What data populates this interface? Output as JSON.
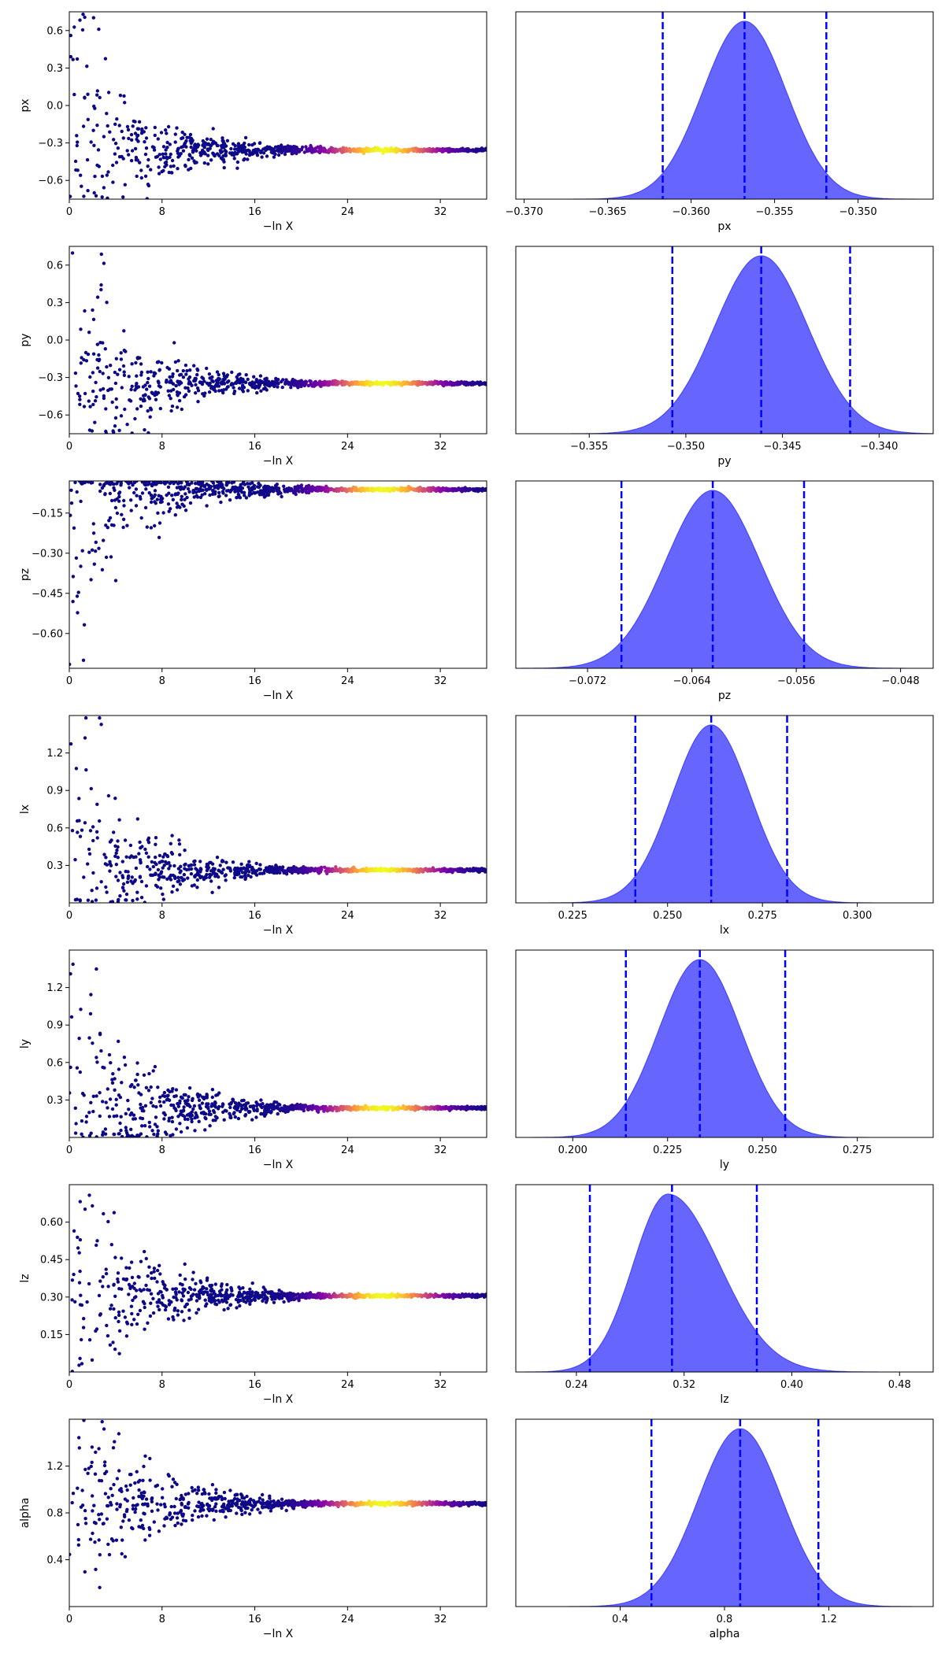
{
  "chart_data": [
    {
      "type": "scatter",
      "panel": "trace",
      "param": "px",
      "xlabel": "−ln X",
      "ylabel": "px",
      "xlim": [
        0,
        36
      ],
      "ylim": [
        -0.75,
        0.75
      ],
      "xticks": [
        0,
        8,
        16,
        24,
        32
      ],
      "yticks": [
        "0.6",
        "0.3",
        "0.0",
        "−0.3",
        "−0.6"
      ],
      "yvals": [
        0.6,
        0.3,
        0.0,
        -0.3,
        -0.6
      ],
      "converge_value": -0.357,
      "early_spread": [
        -0.75,
        0.75
      ],
      "colormap": "plasma",
      "peak_x": 27
    },
    {
      "type": "area",
      "panel": "posterior",
      "xlabel": "px",
      "xlim": [
        -0.3705,
        -0.3455
      ],
      "xticks": [
        "−0.370",
        "−0.365",
        "−0.360",
        "−0.355",
        "−0.350"
      ],
      "xvals": [
        -0.37,
        -0.365,
        -0.36,
        -0.355,
        -0.35
      ],
      "mean": -0.3568,
      "std": 0.0025,
      "skew": 0.0,
      "quantiles": [
        -0.3617,
        -0.3568,
        -0.3519
      ]
    },
    {
      "type": "scatter",
      "panel": "trace",
      "param": "py",
      "xlabel": "−ln X",
      "ylabel": "py",
      "xlim": [
        0,
        36
      ],
      "ylim": [
        -0.75,
        0.75
      ],
      "xticks": [
        0,
        8,
        16,
        24,
        32
      ],
      "yticks": [
        "0.6",
        "0.3",
        "0.0",
        "−0.3",
        "−0.6"
      ],
      "yvals": [
        0.6,
        0.3,
        0.0,
        -0.3,
        -0.6
      ],
      "converge_value": -0.346,
      "early_spread": [
        -0.75,
        0.75
      ],
      "colormap": "plasma",
      "peak_x": 27
    },
    {
      "type": "area",
      "panel": "posterior",
      "xlabel": "py",
      "xlim": [
        -0.3588,
        -0.3372
      ],
      "xticks": [
        "−0.355",
        "−0.350",
        "−0.345",
        "−0.340"
      ],
      "xvals": [
        -0.355,
        -0.35,
        -0.345,
        -0.34
      ],
      "mean": -0.3461,
      "std": 0.0024,
      "skew": 0.0,
      "quantiles": [
        -0.3507,
        -0.3461,
        -0.3415
      ]
    },
    {
      "type": "scatter",
      "panel": "trace",
      "param": "pz",
      "xlabel": "−ln X",
      "ylabel": "pz",
      "xlim": [
        0,
        36
      ],
      "ylim": [
        -0.73,
        -0.03
      ],
      "xticks": [
        0,
        8,
        16,
        24,
        32
      ],
      "yticks": [
        "−0.15",
        "−0.30",
        "−0.45",
        "−0.60"
      ],
      "yvals": [
        -0.15,
        -0.3,
        -0.45,
        -0.6
      ],
      "converge_value": -0.062,
      "early_spread": [
        -0.73,
        -0.03
      ],
      "colormap": "plasma",
      "peak_x": 27
    },
    {
      "type": "area",
      "panel": "posterior",
      "xlabel": "pz",
      "xlim": [
        -0.0775,
        -0.0455
      ],
      "xticks": [
        "−0.072",
        "−0.064",
        "−0.056",
        "−0.048"
      ],
      "xvals": [
        -0.072,
        -0.064,
        -0.056,
        -0.048
      ],
      "mean": -0.0624,
      "std": 0.0036,
      "skew": 0.0,
      "quantiles": [
        -0.0694,
        -0.0624,
        -0.0554
      ]
    },
    {
      "type": "scatter",
      "panel": "trace",
      "param": "lx",
      "xlabel": "−ln X",
      "ylabel": "lx",
      "xlim": [
        0,
        36
      ],
      "ylim": [
        0.0,
        1.5
      ],
      "xticks": [
        0,
        8,
        16,
        24,
        32
      ],
      "yticks": [
        "1.2",
        "0.9",
        "0.6",
        "0.3"
      ],
      "yvals": [
        1.2,
        0.9,
        0.6,
        0.3
      ],
      "converge_value": 0.262,
      "early_spread": [
        0.0,
        1.5
      ],
      "colormap": "plasma",
      "peak_x": 27
    },
    {
      "type": "area",
      "panel": "posterior",
      "xlabel": "lx",
      "xlim": [
        0.21,
        0.32
      ],
      "xticks": [
        "0.225",
        "0.250",
        "0.275",
        "0.300"
      ],
      "xvals": [
        0.225,
        0.25,
        0.275,
        0.3
      ],
      "mean": 0.2615,
      "std": 0.0103,
      "skew": 0.0,
      "quantiles": [
        0.2415,
        0.2615,
        0.2815
      ]
    },
    {
      "type": "scatter",
      "panel": "trace",
      "param": "ly",
      "xlabel": "−ln X",
      "ylabel": "ly",
      "xlim": [
        0,
        36
      ],
      "ylim": [
        0.0,
        1.5
      ],
      "xticks": [
        0,
        8,
        16,
        24,
        32
      ],
      "yticks": [
        "1.2",
        "0.9",
        "0.6",
        "0.3"
      ],
      "yvals": [
        1.2,
        0.9,
        0.6,
        0.3
      ],
      "converge_value": 0.235,
      "early_spread": [
        0.0,
        1.5
      ],
      "colormap": "plasma",
      "peak_x": 27
    },
    {
      "type": "area",
      "panel": "posterior",
      "xlabel": "ly",
      "xlim": [
        0.185,
        0.295
      ],
      "xticks": [
        "0.200",
        "0.225",
        "0.250",
        "0.275"
      ],
      "xvals": [
        0.2,
        0.225,
        0.25,
        0.275
      ],
      "mean": 0.2335,
      "std": 0.0108,
      "skew": 0.0,
      "quantiles": [
        0.214,
        0.2335,
        0.256
      ]
    },
    {
      "type": "scatter",
      "panel": "trace",
      "param": "lz",
      "xlabel": "−ln X",
      "ylabel": "lz",
      "xlim": [
        0,
        36
      ],
      "ylim": [
        0.0,
        0.75
      ],
      "xticks": [
        0,
        8,
        16,
        24,
        32
      ],
      "yticks": [
        "0.60",
        "0.45",
        "0.30",
        "0.15"
      ],
      "yvals": [
        0.6,
        0.45,
        0.3,
        0.15
      ],
      "converge_value": 0.305,
      "early_spread": [
        0.0,
        0.75
      ],
      "colormap": "plasma",
      "peak_x": 27
    },
    {
      "type": "area",
      "panel": "posterior",
      "xlabel": "lz",
      "xlim": [
        0.195,
        0.505
      ],
      "xticks": [
        "0.24",
        "0.32",
        "0.40",
        "0.48"
      ],
      "xvals": [
        0.24,
        0.32,
        0.4,
        0.48
      ],
      "mean": 0.308,
      "std": 0.032,
      "skew": 0.55,
      "quantiles": [
        0.25,
        0.311,
        0.374
      ]
    },
    {
      "type": "scatter",
      "panel": "trace",
      "param": "alpha",
      "xlabel": "−ln X",
      "ylabel": "alpha",
      "xlim": [
        0,
        36
      ],
      "ylim": [
        0.0,
        1.6
      ],
      "xticks": [
        0,
        8,
        16,
        24,
        32
      ],
      "yticks": [
        "1.2",
        "0.8",
        "0.4"
      ],
      "yvals": [
        1.2,
        0.8,
        0.4
      ],
      "converge_value": 0.88,
      "early_spread": [
        0.0,
        1.6
      ],
      "colormap": "plasma",
      "peak_x": 27
    },
    {
      "type": "area",
      "panel": "posterior",
      "xlabel": "alpha",
      "xlim": [
        0.0,
        1.6
      ],
      "xticks": [
        "0.4",
        "0.8",
        "1.2"
      ],
      "xvals": [
        0.4,
        0.8,
        1.2
      ],
      "mean": 0.86,
      "std": 0.16,
      "skew": 0.0,
      "quantiles": [
        0.52,
        0.86,
        1.16
      ]
    }
  ]
}
